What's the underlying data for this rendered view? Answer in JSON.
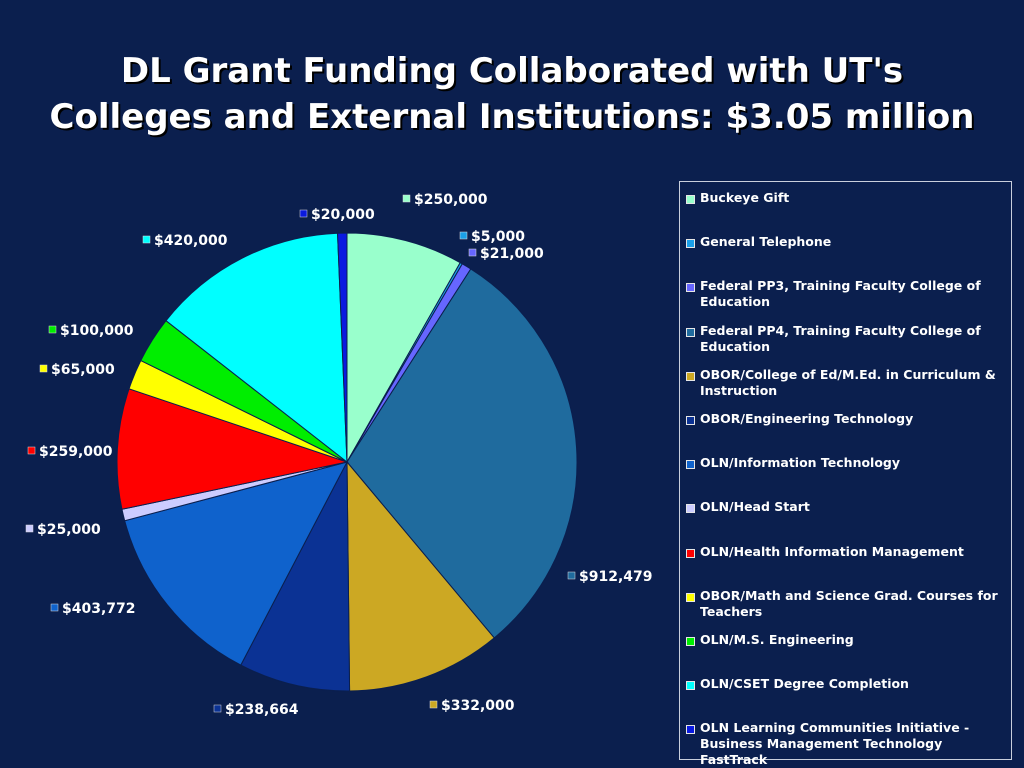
{
  "title_lines": [
    "DL Grant Funding Collaborated with UT's",
    "Colleges and External Institutions: $3.05 million"
  ],
  "chart_data": {
    "type": "pie",
    "title": "DL Grant Funding Collaborated with UT's Colleges and External Institutions: $3.05 million",
    "legend_position": "right",
    "slices": [
      {
        "name": "Buckeye Gift",
        "value": 250000,
        "label": "$250,000",
        "color": "#99ffcc"
      },
      {
        "name": "General Telephone",
        "value": 5000,
        "label": "$5,000",
        "color": "#1a9fe8"
      },
      {
        "name": "Federal PP3, Training Faculty College of Education",
        "value": 21000,
        "label": "$21,000",
        "color": "#6666ff"
      },
      {
        "name": "Federal PP4, Training Faculty College of Education",
        "value": 912479,
        "label": "$912,479",
        "color": "#1f6b9e"
      },
      {
        "name": "OBOR/College of Ed/M.Ed. in Curriculum & Instruction",
        "value": 332000,
        "label": "$332,000",
        "color": "#cca823"
      },
      {
        "name": "OBOR/Engineering Technology",
        "value": 238664,
        "label": "$238,664",
        "color": "#0b3294"
      },
      {
        "name": "OLN/Information Technology",
        "value": 403772,
        "label": "$403,772",
        "color": "#0f62cc"
      },
      {
        "name": "OLN/Head Start",
        "value": 25000,
        "label": "$25,000",
        "color": "#ccccff"
      },
      {
        "name": "OLN/Health Information Management",
        "value": 259000,
        "label": "$259,000",
        "color": "#ff0000"
      },
      {
        "name": "OBOR/Math and Science Grad. Courses for Teachers",
        "value": 65000,
        "label": "$65,000",
        "color": "#ffff00"
      },
      {
        "name": "OLN/M.S. Engineering",
        "value": 100000,
        "label": "$100,000",
        "color": "#00ee00"
      },
      {
        "name": "OLN/CSET Degree Completion",
        "value": 420000,
        "label": "$420,000",
        "color": "#00ffff"
      },
      {
        "name": "OLN Learning Communities Initiative - Business Management Technology FastTrack",
        "value": 20000,
        "label": "$20,000",
        "color": "#0a1ae0"
      }
    ]
  },
  "colors": {
    "background": "#0b1f4e",
    "slice_border": "#0b1f4e"
  }
}
